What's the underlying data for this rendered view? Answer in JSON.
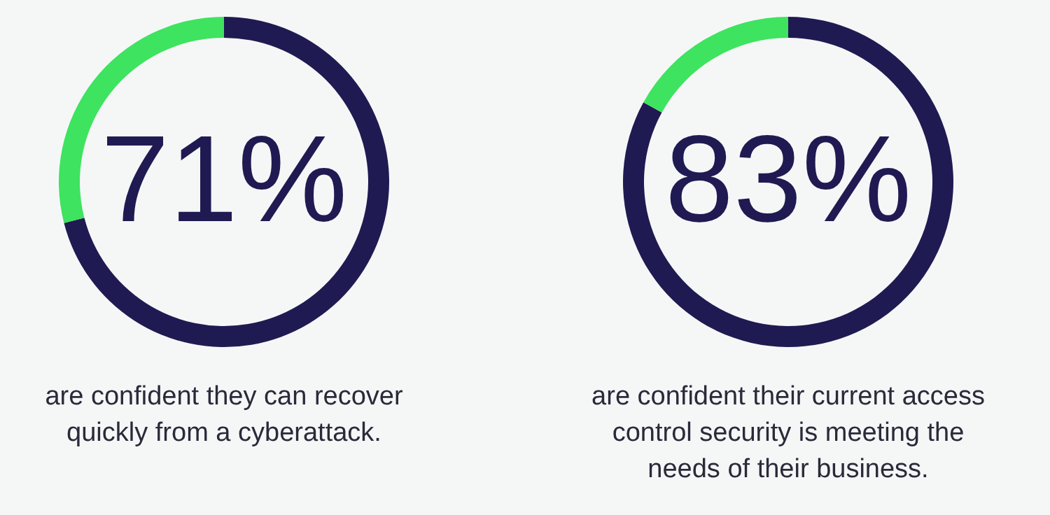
{
  "chart_data": [
    {
      "type": "donut",
      "categories": [
        null,
        null
      ],
      "values": [
        71,
        29
      ],
      "colors": [
        "#201a52",
        "#3ee35f"
      ],
      "annotations": [
        "71%",
        "are confident they can recover quickly from a cyberattack."
      ]
    },
    {
      "type": "donut",
      "categories": [
        null,
        null
      ],
      "values": [
        83,
        17
      ],
      "colors": [
        "#201a52",
        "#3ee35f"
      ],
      "annotations": [
        "83%",
        "are confident their current access control security is meeting the needs of their business."
      ]
    }
  ]
}
